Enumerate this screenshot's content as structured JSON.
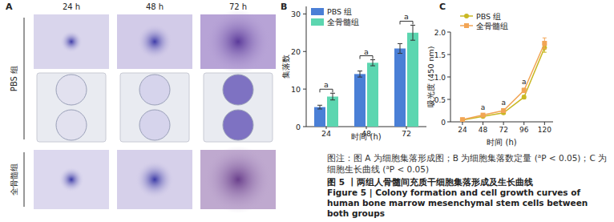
{
  "figure": {
    "panel_a": {
      "label": "A",
      "columns": [
        "24 h",
        "48 h",
        "72 h"
      ],
      "groups": [
        "PBS 组",
        "全骨髓组"
      ]
    },
    "caption": {
      "note": [
        {
          "text": "图注：图 A 为细胞集落形成图；B 为细胞集落数定量 (",
          "superscript": false
        },
        {
          "text": "a",
          "superscript": true
        },
        {
          "text": "P < 0.05)；C 为细胞生长曲线 (",
          "superscript": false
        },
        {
          "text": "a",
          "superscript": true
        },
        {
          "text": "P < 0.05)",
          "superscript": false
        }
      ],
      "title_zh": "图 5 丨两组人骨髓间充质干细胞集落形成及生长曲线",
      "title_en": "Figure 5 | Colony formation and cell growth curves of human bone marrow mesenchymal stem cells between both groups"
    }
  },
  "chart_data": [
    {
      "type": "bar",
      "panel_label": "B",
      "y_label": "集落数",
      "x_label": "时间 (h)",
      "categories": [
        "24",
        "48",
        "72"
      ],
      "series": [
        {
          "name": "PBS 组",
          "color": "#4a7fd6",
          "values": [
            5.2,
            14,
            20.8
          ],
          "errors": [
            0.5,
            0.8,
            1.3
          ]
        },
        {
          "name": "全骨髓组",
          "color": "#5cd6b0",
          "values": [
            8,
            17,
            25
          ],
          "errors": [
            0.9,
            0.8,
            2
          ]
        }
      ],
      "ylim": [
        0,
        32
      ],
      "yticks": [
        0,
        10,
        20,
        30
      ],
      "grid": false,
      "legend": "upper left",
      "annotations": [
        {
          "category": "24",
          "text": "a"
        },
        {
          "category": "48",
          "text": "a"
        },
        {
          "category": "72",
          "text": "a"
        }
      ]
    },
    {
      "type": "line",
      "panel_label": "C",
      "y_label": "吸光度 (450 nm)",
      "x_label": "时间 (h)",
      "x": [
        24,
        48,
        72,
        96,
        120
      ],
      "series": [
        {
          "name": "PBS 组",
          "color": "#c9b824",
          "marker": "circle",
          "values": [
            0.04,
            0.12,
            0.2,
            0.55,
            1.65
          ],
          "errors": [
            0.01,
            0.02,
            0.03,
            0.04,
            0.1
          ]
        },
        {
          "name": "全骨髓组",
          "color": "#f2a555",
          "marker": "square",
          "values": [
            0.05,
            0.15,
            0.25,
            0.7,
            1.75
          ],
          "errors": [
            0.01,
            0.02,
            0.03,
            0.05,
            0.12
          ]
        }
      ],
      "xlim": [
        10,
        130
      ],
      "xticks": [
        24,
        48,
        72,
        96,
        120
      ],
      "ylim": [
        0,
        2
      ],
      "yticks": [
        0,
        0.5,
        {
          "value": 1,
          "label": "1.0"
        },
        1.5,
        {
          "value": 2,
          "label": "2.0"
        }
      ],
      "grid": false,
      "legend": "upper left",
      "annotations": [
        {
          "x": 48,
          "text": "a"
        },
        {
          "x": 72,
          "text": "a"
        },
        {
          "x": 96,
          "text": "a"
        }
      ]
    }
  ]
}
